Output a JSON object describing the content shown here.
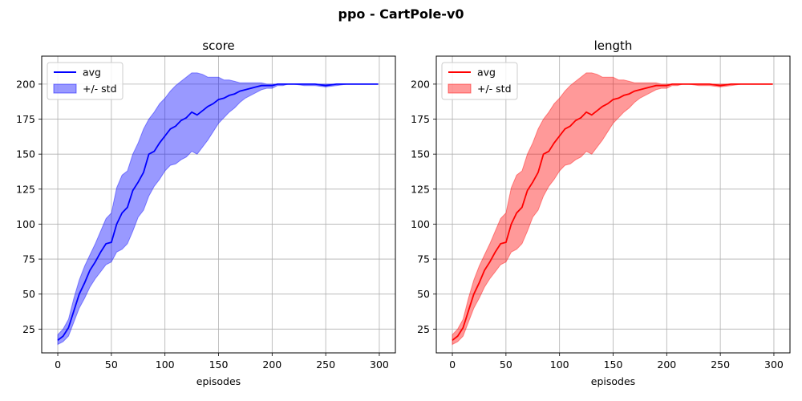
{
  "figure": {
    "suptitle": "ppo - CartPole-v0"
  },
  "chart_data": [
    {
      "type": "line",
      "title": "score",
      "xlabel": "episodes",
      "ylabel": "",
      "xlim": [
        -15,
        315
      ],
      "ylim": [
        8,
        220
      ],
      "xticks": [
        0,
        50,
        100,
        150,
        200,
        250,
        300
      ],
      "yticks": [
        25,
        50,
        75,
        100,
        125,
        150,
        175,
        200
      ],
      "grid": true,
      "legend": "top-left",
      "color": "#0000ff",
      "series": [
        {
          "name": "avg",
          "kind": "line"
        },
        {
          "name": "+/- std",
          "kind": "band"
        }
      ],
      "x": [
        0,
        5,
        10,
        15,
        20,
        25,
        30,
        35,
        40,
        45,
        50,
        55,
        60,
        65,
        70,
        75,
        80,
        85,
        90,
        95,
        100,
        105,
        110,
        115,
        120,
        125,
        130,
        135,
        140,
        145,
        150,
        155,
        160,
        165,
        170,
        175,
        180,
        185,
        190,
        195,
        200,
        205,
        210,
        215,
        220,
        230,
        240,
        250,
        260,
        270,
        280,
        290,
        299
      ],
      "avg": [
        17,
        20,
        26,
        38,
        50,
        58,
        67,
        73,
        80,
        86,
        87,
        100,
        108,
        112,
        124,
        130,
        137,
        150,
        152,
        158,
        163,
        168,
        170,
        174,
        176,
        180,
        178,
        181,
        184,
        186,
        189,
        190,
        192,
        193,
        195,
        196,
        197,
        198,
        199,
        199,
        199,
        200,
        200,
        200,
        200,
        200,
        200,
        199,
        200,
        200,
        200,
        200,
        200
      ],
      "upper": [
        21,
        25,
        32,
        47,
        60,
        70,
        78,
        86,
        95,
        104,
        108,
        126,
        135,
        138,
        150,
        158,
        168,
        175,
        180,
        186,
        190,
        195,
        199,
        202,
        205,
        208,
        208,
        207,
        205,
        205,
        205,
        203,
        203,
        202,
        201,
        201,
        201,
        201,
        201,
        200,
        200,
        200,
        200,
        200,
        200,
        200,
        200,
        200,
        200,
        200,
        200,
        200,
        200
      ],
      "lower": [
        14,
        16,
        20,
        30,
        40,
        47,
        55,
        61,
        66,
        71,
        73,
        80,
        82,
        86,
        95,
        105,
        110,
        120,
        127,
        132,
        138,
        142,
        143,
        146,
        148,
        152,
        150,
        155,
        160,
        166,
        172,
        176,
        180,
        183,
        187,
        190,
        192,
        194,
        196,
        197,
        197,
        199,
        199,
        200,
        200,
        199,
        199,
        198,
        199,
        200,
        200,
        200,
        200
      ]
    },
    {
      "type": "line",
      "title": "length",
      "xlabel": "episodes",
      "ylabel": "",
      "xlim": [
        -15,
        315
      ],
      "ylim": [
        8,
        220
      ],
      "xticks": [
        0,
        50,
        100,
        150,
        200,
        250,
        300
      ],
      "yticks": [
        25,
        50,
        75,
        100,
        125,
        150,
        175,
        200
      ],
      "grid": true,
      "legend": "top-left",
      "color": "#ff0000",
      "series": [
        {
          "name": "avg",
          "kind": "line"
        },
        {
          "name": "+/- std",
          "kind": "band"
        }
      ],
      "x": [
        0,
        5,
        10,
        15,
        20,
        25,
        30,
        35,
        40,
        45,
        50,
        55,
        60,
        65,
        70,
        75,
        80,
        85,
        90,
        95,
        100,
        105,
        110,
        115,
        120,
        125,
        130,
        135,
        140,
        145,
        150,
        155,
        160,
        165,
        170,
        175,
        180,
        185,
        190,
        195,
        200,
        205,
        210,
        215,
        220,
        230,
        240,
        250,
        260,
        270,
        280,
        290,
        299
      ],
      "avg": [
        17,
        20,
        26,
        38,
        50,
        58,
        67,
        73,
        80,
        86,
        87,
        100,
        108,
        112,
        124,
        130,
        137,
        150,
        152,
        158,
        163,
        168,
        170,
        174,
        176,
        180,
        178,
        181,
        184,
        186,
        189,
        190,
        192,
        193,
        195,
        196,
        197,
        198,
        199,
        199,
        199,
        200,
        200,
        200,
        200,
        200,
        200,
        199,
        200,
        200,
        200,
        200,
        200
      ],
      "upper": [
        21,
        25,
        32,
        47,
        60,
        70,
        78,
        86,
        95,
        104,
        108,
        126,
        135,
        138,
        150,
        158,
        168,
        175,
        180,
        186,
        190,
        195,
        199,
        202,
        205,
        208,
        208,
        207,
        205,
        205,
        205,
        203,
        203,
        202,
        201,
        201,
        201,
        201,
        201,
        200,
        200,
        200,
        200,
        200,
        200,
        200,
        200,
        200,
        200,
        200,
        200,
        200,
        200
      ],
      "lower": [
        14,
        16,
        20,
        30,
        40,
        47,
        55,
        61,
        66,
        71,
        73,
        80,
        82,
        86,
        95,
        105,
        110,
        120,
        127,
        132,
        138,
        142,
        143,
        146,
        148,
        152,
        150,
        155,
        160,
        166,
        172,
        176,
        180,
        183,
        187,
        190,
        192,
        194,
        196,
        197,
        197,
        199,
        199,
        200,
        200,
        199,
        199,
        198,
        199,
        200,
        200,
        200,
        200
      ]
    }
  ]
}
